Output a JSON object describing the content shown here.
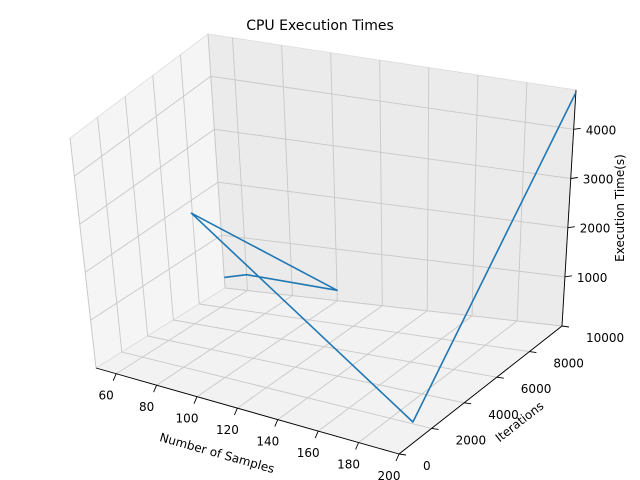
{
  "chart_data": {
    "type": "line",
    "projection": "3d",
    "title": "CPU Execution Times",
    "xlabel": "Number of Samples",
    "ylabel": "Iterations",
    "zlabel": "Execution Time(s)",
    "xlim": [
      50,
      200
    ],
    "ylim": [
      0,
      10000
    ],
    "zlim": [
      0,
      4800
    ],
    "xticks": [
      60,
      80,
      100,
      120,
      140,
      160,
      180,
      200
    ],
    "yticks": [
      0,
      2000,
      4000,
      6000,
      8000,
      10000
    ],
    "zticks": [
      1000,
      2000,
      3000,
      4000
    ],
    "grid": true,
    "series": [
      {
        "color": "#1f77b4",
        "points": [
          {
            "x": 50,
            "y": 10000,
            "z": 200
          },
          {
            "x": 60,
            "y": 10000,
            "z": 300
          },
          {
            "x": 100,
            "y": 10000,
            "z": 200
          },
          {
            "x": 100,
            "y": 1000,
            "z": 3600
          },
          {
            "x": 200,
            "y": 1000,
            "z": 400
          },
          {
            "x": 200,
            "y": 10000,
            "z": 4750
          }
        ]
      }
    ]
  }
}
